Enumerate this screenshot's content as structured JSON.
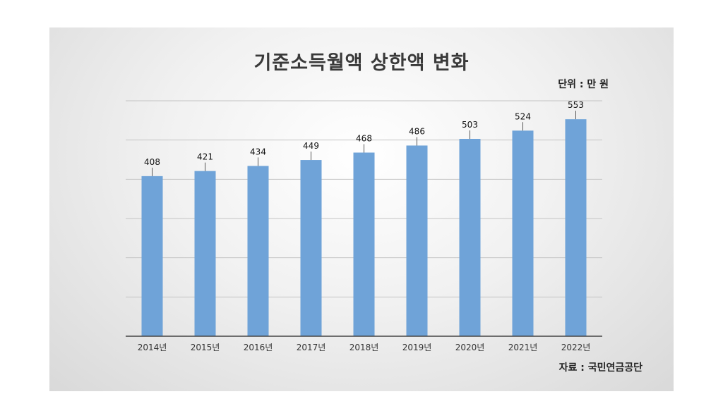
{
  "chart_data": {
    "type": "bar",
    "title": "기준소득월액 상한액 변화",
    "unit_label": "단위 : 만 원",
    "source_label": "자료 : 국민연금공단",
    "categories": [
      "2014년",
      "2015년",
      "2016년",
      "2017년",
      "2018년",
      "2019년",
      "2020년",
      "2021년",
      "2022년"
    ],
    "values": [
      408,
      421,
      434,
      449,
      468,
      486,
      503,
      524,
      553
    ],
    "ylim": [
      0,
      600
    ],
    "grid": true,
    "bar_color": "#6fa3d8",
    "data_labels": true
  }
}
